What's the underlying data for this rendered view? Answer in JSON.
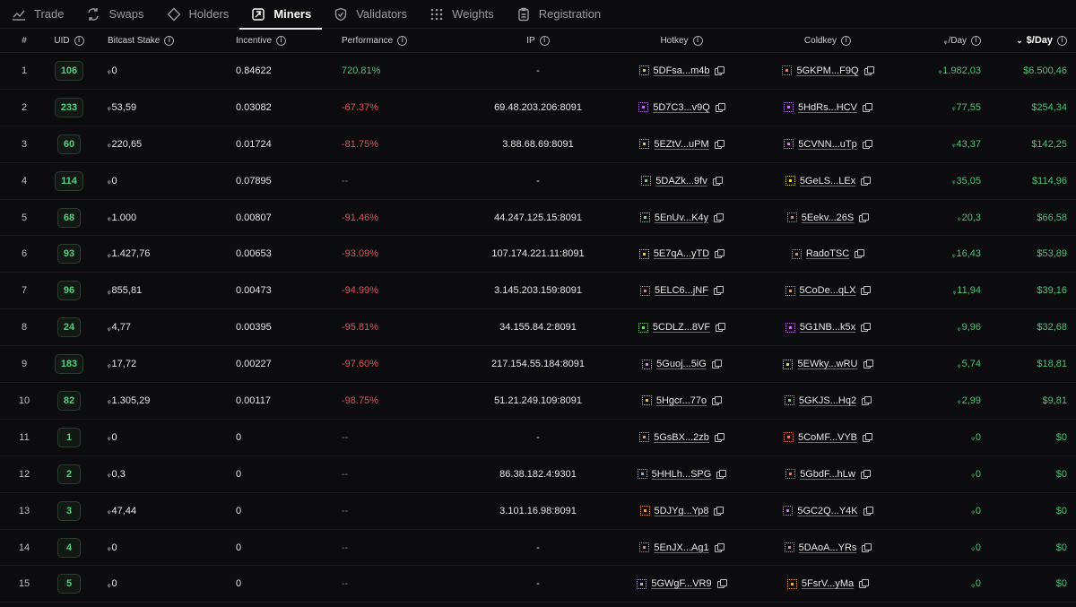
{
  "tabs": [
    {
      "label": "Trade",
      "icon": "trend-icon",
      "active": false
    },
    {
      "label": "Swaps",
      "icon": "swap-icon",
      "active": false
    },
    {
      "label": "Holders",
      "icon": "diamond-icon",
      "active": false
    },
    {
      "label": "Miners",
      "icon": "pickaxe-icon",
      "active": true
    },
    {
      "label": "Validators",
      "icon": "shield-icon",
      "active": false
    },
    {
      "label": "Weights",
      "icon": "grid-dots-icon",
      "active": false
    },
    {
      "label": "Registration",
      "icon": "clipboard-icon",
      "active": false
    }
  ],
  "columns": {
    "num": "#",
    "uid": "UID",
    "stake": "Bitcast Stake",
    "incentive": "Incentive",
    "performance": "Performance",
    "ip": "IP",
    "hotkey": "Hotkey",
    "coldkey": "Coldkey",
    "tao_day": "/Day",
    "usd_day": "$/Day"
  },
  "currency_symbol": "ᵩ",
  "colors": {
    "accent_green": "#4ac178",
    "negative_red": "#e0525a"
  },
  "rows": [
    {
      "num": "1",
      "uid": "106",
      "stake": "0",
      "incentive": "0.84622",
      "performance": "720.81%",
      "perf_state": "pos",
      "ip": "-",
      "hotkey": "5DFsa...m4b",
      "coldkey": "5GKPM...F9Q",
      "tao_day": "1.982,03",
      "usd_day": "$6.500,46",
      "hot_color": "#d8c25a",
      "cold_color": "#e07a6a"
    },
    {
      "num": "2",
      "uid": "233",
      "stake": "53,59",
      "incentive": "0.03082",
      "performance": "-67.37%",
      "perf_state": "neg",
      "ip": "69.48.203.206:8091",
      "hotkey": "5D7C3...v9Q",
      "coldkey": "5HdRs...HCV",
      "tao_day": "77,55",
      "usd_day": "$254,34",
      "hot_color": "#b57ae0",
      "cold_color": "#b57ae0"
    },
    {
      "num": "3",
      "uid": "60",
      "stake": "220,65",
      "incentive": "0.01724",
      "performance": "-81.75%",
      "perf_state": "neg",
      "ip": "3.88.68.69:8091",
      "hotkey": "5EZtV...uPM",
      "coldkey": "5CVNN...uTp",
      "tao_day": "43,37",
      "usd_day": "$142,25",
      "hot_color": "#e3c94a",
      "cold_color": "#d87ad0"
    },
    {
      "num": "4",
      "uid": "114",
      "stake": "0",
      "incentive": "0.07895",
      "performance": "--",
      "perf_state": "none",
      "ip": "-",
      "hotkey": "5DAZk...9fv",
      "coldkey": "5GeLS...LEx",
      "tao_day": "35,05",
      "usd_day": "$114,96",
      "hot_color": "#7ad07a",
      "cold_color": "#e0d85a"
    },
    {
      "num": "5",
      "uid": "68",
      "stake": "1.000",
      "incentive": "0.00807",
      "performance": "-91.46%",
      "perf_state": "neg",
      "ip": "44.247.125.15:8091",
      "hotkey": "5EnUv...K4y",
      "coldkey": "5Eekv...26S",
      "tao_day": "20,3",
      "usd_day": "$66,58",
      "hot_color": "#7ad0c0",
      "cold_color": "#d87a9a"
    },
    {
      "num": "6",
      "uid": "93",
      "stake": "1.427,76",
      "incentive": "0.00653",
      "performance": "-93.09%",
      "perf_state": "neg",
      "ip": "107.174.221.11:8091",
      "hotkey": "5E7qA...yTD",
      "coldkey": "RadoTSC",
      "tao_day": "16,43",
      "usd_day": "$53,89",
      "hot_color": "#e3c94a",
      "cold_color": "#e08a5a"
    },
    {
      "num": "7",
      "uid": "96",
      "stake": "855,81",
      "incentive": "0.00473",
      "performance": "-94.99%",
      "perf_state": "neg",
      "ip": "3.145.203.159:8091",
      "hotkey": "5ELC6...jNF",
      "coldkey": "5CoDe...qLX",
      "tao_day": "11,94",
      "usd_day": "$39,16",
      "hot_color": "#e07a9a",
      "cold_color": "#e0a04a"
    },
    {
      "num": "8",
      "uid": "24",
      "stake": "4,77",
      "incentive": "0.00395",
      "performance": "-95.81%",
      "perf_state": "neg",
      "ip": "34.155.84.2:8091",
      "hotkey": "5CDLZ...8VF",
      "coldkey": "5G1NB...k5x",
      "tao_day": "9,96",
      "usd_day": "$32,68",
      "hot_color": "#7ad07a",
      "cold_color": "#c07ae0"
    },
    {
      "num": "9",
      "uid": "183",
      "stake": "17,72",
      "incentive": "0.00227",
      "performance": "-97.60%",
      "perf_state": "neg",
      "ip": "217.154.55.184:8091",
      "hotkey": "5Guoj...5iG",
      "coldkey": "5EWky...wRU",
      "tao_day": "5,74",
      "usd_day": "$18,81",
      "hot_color": "#d08ad8",
      "cold_color": "#d0e04a"
    },
    {
      "num": "10",
      "uid": "82",
      "stake": "1.305,29",
      "incentive": "0.00117",
      "performance": "-98.75%",
      "perf_state": "neg",
      "ip": "51.21.249.109:8091",
      "hotkey": "5Hgcr...77o",
      "coldkey": "5GKJS...Hq2",
      "tao_day": "2,99",
      "usd_day": "$9,81",
      "hot_color": "#e0c04a",
      "cold_color": "#7ad07a"
    },
    {
      "num": "11",
      "uid": "1",
      "stake": "0",
      "incentive": "0",
      "performance": "--",
      "perf_state": "none",
      "ip": "-",
      "hotkey": "5GsBX...2zb",
      "coldkey": "5CoMF...VYB",
      "tao_day": "0",
      "usd_day": "$0",
      "hot_color": "#d09a8a",
      "cold_color": "#e07a6a"
    },
    {
      "num": "12",
      "uid": "2",
      "stake": "0,3",
      "incentive": "0",
      "performance": "--",
      "perf_state": "none",
      "ip": "86.38.182.4:9301",
      "hotkey": "5HHLh...SPG",
      "coldkey": "5GbdF...hLw",
      "tao_day": "0",
      "usd_day": "$0",
      "hot_color": "#7ab0e0",
      "cold_color": "#e07a6a"
    },
    {
      "num": "13",
      "uid": "3",
      "stake": "47,44",
      "incentive": "0",
      "performance": "--",
      "perf_state": "none",
      "ip": "3.101.16.98:8091",
      "hotkey": "5DJYg...Yp8",
      "coldkey": "5GC2Q...Y4K",
      "tao_day": "0",
      "usd_day": "$0",
      "hot_color": "#e0a04a",
      "cold_color": "#c07ae0"
    },
    {
      "num": "14",
      "uid": "4",
      "stake": "0",
      "incentive": "0",
      "performance": "--",
      "perf_state": "none",
      "ip": "-",
      "hotkey": "5EnJX...Ag1",
      "coldkey": "5DAoA...YRs",
      "tao_day": "0",
      "usd_day": "$0",
      "hot_color": "#e07a9a",
      "cold_color": "#d87ad0"
    },
    {
      "num": "15",
      "uid": "5",
      "stake": "0",
      "incentive": "0",
      "performance": "--",
      "perf_state": "none",
      "ip": "-",
      "hotkey": "5GWgF...VR9",
      "coldkey": "5FsrV...yMa",
      "tao_day": "0",
      "usd_day": "$0",
      "hot_color": "#b0b0c0",
      "cold_color": "#e0b04a"
    }
  ]
}
